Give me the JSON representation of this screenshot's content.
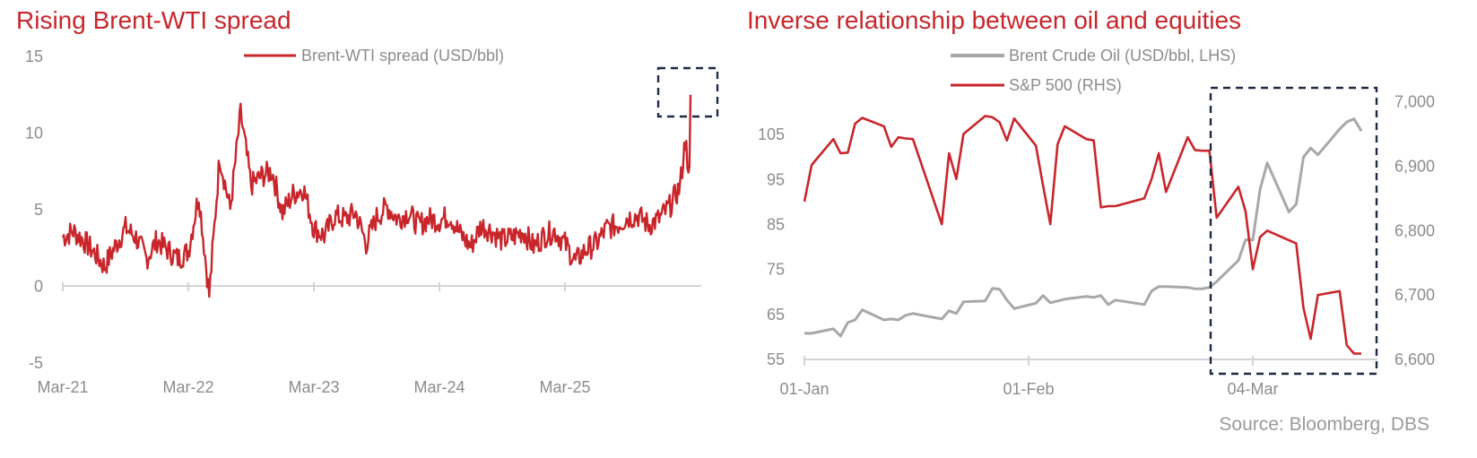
{
  "colors": {
    "red": "#c8262b",
    "grey": "#a8a8a8",
    "axis": "#d4d4d4",
    "box": "#1f2a44",
    "text": "#8c8c8c"
  },
  "source": "Source: Bloomberg, DBS",
  "chart_data": [
    {
      "type": "line",
      "title": "Rising Brent-WTI spread",
      "xlabel": "",
      "ylabel": "",
      "ylim": [
        -5,
        15
      ],
      "yticks": [
        "15",
        "10",
        "5",
        "0",
        "-5"
      ],
      "xticks": [
        "Mar-21",
        "Mar-22",
        "Mar-23",
        "Mar-24",
        "Mar-25"
      ],
      "legend_position": "top-center",
      "grid": false,
      "series": [
        {
          "name": "Brent-WTI spread (USD/bbl)",
          "color": "#c8262b",
          "x": [
            "2021-03",
            "2021-04",
            "2021-05",
            "2021-06",
            "2021-07",
            "2021-08",
            "2021-09",
            "2021-10",
            "2021-11",
            "2021-12",
            "2022-01",
            "2022-02",
            "2022-03",
            "2022-04",
            "2022-05",
            "2022-06",
            "2022-07",
            "2022-08",
            "2022-09",
            "2022-10",
            "2022-11",
            "2022-12",
            "2023-01",
            "2023-02",
            "2023-03",
            "2023-04",
            "2023-05",
            "2023-06",
            "2023-07",
            "2023-08",
            "2023-09",
            "2023-10",
            "2023-11",
            "2023-12",
            "2024-01",
            "2024-02",
            "2024-03",
            "2024-04",
            "2024-05",
            "2024-06",
            "2024-07",
            "2024-08",
            "2024-09",
            "2024-10",
            "2024-11",
            "2024-12",
            "2025-01",
            "2025-02",
            "2025-03",
            "2025-04",
            "2025-05",
            "2025-06",
            "2025-07",
            "2025-08",
            "2025-09",
            "2025-10",
            "2025-11",
            "2025-12",
            "2026-01",
            "2026-02",
            "2026-03"
          ],
          "values": [
            3.2,
            3.6,
            3.0,
            2.2,
            1.3,
            2.6,
            3.8,
            3.2,
            1.8,
            3.0,
            2.4,
            1.8,
            2.3,
            6.0,
            -0.6,
            8.5,
            5.0,
            11.3,
            6.6,
            7.2,
            7.5,
            4.8,
            6.0,
            6.4,
            3.8,
            3.3,
            4.6,
            4.4,
            4.8,
            2.8,
            4.5,
            5.2,
            4.4,
            4.8,
            4.0,
            4.4,
            4.3,
            4.6,
            3.4,
            2.6,
            4.0,
            3.6,
            3.0,
            3.2,
            3.6,
            2.6,
            3.3,
            3.6,
            2.8,
            1.6,
            2.4,
            2.8,
            3.8,
            4.0,
            4.5,
            4.6,
            4.0,
            4.4,
            5.2,
            6.5,
            12.5
          ]
        }
      ]
    },
    {
      "type": "line",
      "title": "Inverse relationship between oil and equities",
      "xlabel": "",
      "ylabel": "",
      "ylim": [
        55,
        115
      ],
      "y2lim": [
        6600,
        7000
      ],
      "yticks": [
        "105",
        "95",
        "85",
        "75",
        "65",
        "55"
      ],
      "y2ticks": [
        "7,000",
        "6,900",
        "6,800",
        "6,700",
        "6,600"
      ],
      "xticks": [
        "01-Jan",
        "01-Feb",
        "04-Mar"
      ],
      "legend_position": "top-center",
      "grid": false,
      "series": [
        {
          "name": "Brent Crude Oil (USD/bbl, LHS)",
          "color": "#a8a8a8",
          "axis": "left",
          "x": [
            "2026-01-01",
            "2026-01-02",
            "2026-01-05",
            "2026-01-06",
            "2026-01-07",
            "2026-01-08",
            "2026-01-09",
            "2026-01-12",
            "2026-01-13",
            "2026-01-14",
            "2026-01-15",
            "2026-01-16",
            "2026-01-20",
            "2026-01-21",
            "2026-01-22",
            "2026-01-23",
            "2026-01-26",
            "2026-01-27",
            "2026-01-28",
            "2026-01-29",
            "2026-01-30",
            "2026-02-02",
            "2026-02-03",
            "2026-02-04",
            "2026-02-05",
            "2026-02-06",
            "2026-02-09",
            "2026-02-10",
            "2026-02-11",
            "2026-02-12",
            "2026-02-13",
            "2026-02-17",
            "2026-02-18",
            "2026-02-19",
            "2026-02-20",
            "2026-02-23",
            "2026-02-24",
            "2026-02-25",
            "2026-02-26",
            "2026-02-27",
            "2026-03-02",
            "2026-03-03",
            "2026-03-04",
            "2026-03-05",
            "2026-03-06",
            "2026-03-09",
            "2026-03-10",
            "2026-03-11",
            "2026-03-12",
            "2026-03-13",
            "2026-03-16",
            "2026-03-17",
            "2026-03-18",
            "2026-03-19"
          ],
          "values": [
            60.8,
            60.8,
            61.8,
            60.2,
            63.2,
            63.8,
            66.0,
            63.8,
            64.0,
            63.8,
            64.8,
            65.2,
            64.0,
            65.8,
            65.2,
            67.8,
            68.0,
            70.8,
            70.6,
            68.2,
            66.3,
            67.5,
            69.2,
            67.6,
            68.0,
            68.4,
            69.0,
            68.8,
            69.2,
            67.2,
            68.2,
            67.2,
            70.2,
            71.2,
            71.2,
            71.0,
            70.7,
            70.7,
            71.0,
            72.3,
            77.0,
            81.6,
            81.6,
            92.8,
            98.7,
            87.8,
            89.5,
            100.0,
            102.0,
            100.5,
            106.2,
            107.8,
            108.5,
            105.8
          ]
        },
        {
          "name": "S&P 500 (RHS)",
          "color": "#c8262b",
          "axis": "right",
          "x": [
            "2026-01-01",
            "2026-01-02",
            "2026-01-05",
            "2026-01-06",
            "2026-01-07",
            "2026-01-08",
            "2026-01-09",
            "2026-01-12",
            "2026-01-13",
            "2026-01-14",
            "2026-01-15",
            "2026-01-16",
            "2026-01-20",
            "2026-01-21",
            "2026-01-22",
            "2026-01-23",
            "2026-01-26",
            "2026-01-27",
            "2026-01-28",
            "2026-01-29",
            "2026-01-30",
            "2026-02-02",
            "2026-02-03",
            "2026-02-04",
            "2026-02-05",
            "2026-02-06",
            "2026-02-09",
            "2026-02-10",
            "2026-02-11",
            "2026-02-12",
            "2026-02-13",
            "2026-02-17",
            "2026-02-18",
            "2026-02-19",
            "2026-02-20",
            "2026-02-23",
            "2026-02-24",
            "2026-02-25",
            "2026-02-26",
            "2026-02-27",
            "2026-03-02",
            "2026-03-03",
            "2026-03-04",
            "2026-03-05",
            "2026-03-06",
            "2026-03-09",
            "2026-03-10",
            "2026-03-11",
            "2026-03-12",
            "2026-03-13",
            "2026-03-16",
            "2026-03-17",
            "2026-03-18",
            "2026-03-19"
          ],
          "values": [
            6845,
            6902,
            6942,
            6920,
            6921,
            6966,
            6975,
            6962,
            6930,
            6945,
            6943,
            6942,
            6810,
            6920,
            6880,
            6950,
            6978,
            6976,
            6968,
            6940,
            6974,
            6932,
            6870,
            6810,
            6934,
            6962,
            6942,
            6940,
            6836,
            6838,
            6838,
            6850,
            6880,
            6920,
            6860,
            6945,
            6925,
            6924,
            6924,
            6820,
            6868,
            6830,
            6740,
            6790,
            6800,
            6785,
            6780,
            6680,
            6632,
            6700,
            6706,
            6622,
            6609,
            6609
          ]
        }
      ]
    }
  ]
}
